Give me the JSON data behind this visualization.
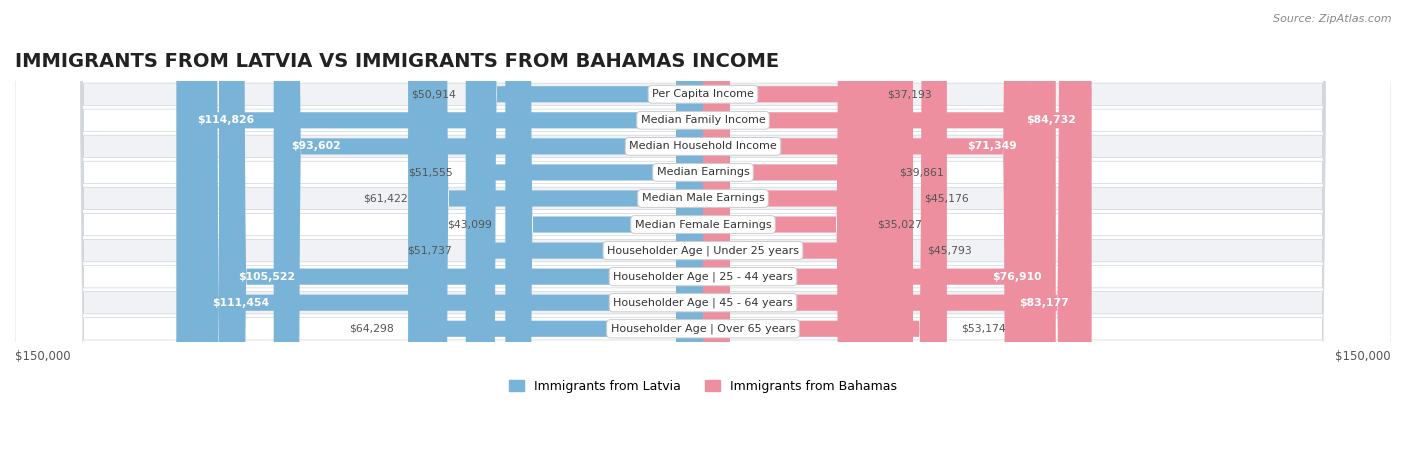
{
  "title": "IMMIGRANTS FROM LATVIA VS IMMIGRANTS FROM BAHAMAS INCOME",
  "source": "Source: ZipAtlas.com",
  "categories": [
    "Per Capita Income",
    "Median Family Income",
    "Median Household Income",
    "Median Earnings",
    "Median Male Earnings",
    "Median Female Earnings",
    "Householder Age | Under 25 years",
    "Householder Age | 25 - 44 years",
    "Householder Age | 45 - 64 years",
    "Householder Age | Over 65 years"
  ],
  "latvia_values": [
    50914,
    114826,
    93602,
    51555,
    61422,
    43099,
    51737,
    105522,
    111454,
    64298
  ],
  "bahamas_values": [
    37193,
    84732,
    71349,
    39861,
    45176,
    35027,
    45793,
    76910,
    83177,
    53174
  ],
  "latvia_color": "#7ab3d8",
  "bahamas_color": "#ee8fa0",
  "latvia_label": "Immigrants from Latvia",
  "bahamas_label": "Immigrants from Bahamas",
  "max_value": 150000,
  "x_label_left": "$150,000",
  "x_label_right": "$150,000",
  "background_color": "#ffffff",
  "row_bg_even": "#f0f2f5",
  "row_bg_odd": "#ffffff",
  "label_fontsize": 8.5,
  "title_fontsize": 14,
  "value_inside_threshold": 70000
}
